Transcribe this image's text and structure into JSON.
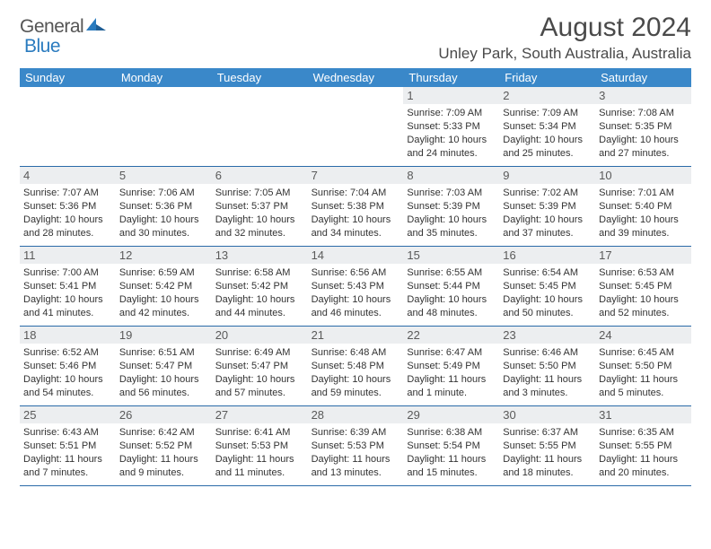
{
  "logo": {
    "word1": "General",
    "word2": "Blue"
  },
  "title": "August 2024",
  "location": "Unley Park, South Australia, Australia",
  "colors": {
    "header_bg": "#3a88c9",
    "header_text": "#ffffff",
    "daynum_bg": "#eceef0",
    "rule": "#2a6aa8",
    "logo_blue": "#2a7bbf"
  },
  "day_names": [
    "Sunday",
    "Monday",
    "Tuesday",
    "Wednesday",
    "Thursday",
    "Friday",
    "Saturday"
  ],
  "weeks": [
    [
      null,
      null,
      null,
      null,
      {
        "n": "1",
        "sr": "Sunrise: 7:09 AM",
        "ss": "Sunset: 5:33 PM",
        "dl": "Daylight: 10 hours and 24 minutes."
      },
      {
        "n": "2",
        "sr": "Sunrise: 7:09 AM",
        "ss": "Sunset: 5:34 PM",
        "dl": "Daylight: 10 hours and 25 minutes."
      },
      {
        "n": "3",
        "sr": "Sunrise: 7:08 AM",
        "ss": "Sunset: 5:35 PM",
        "dl": "Daylight: 10 hours and 27 minutes."
      }
    ],
    [
      {
        "n": "4",
        "sr": "Sunrise: 7:07 AM",
        "ss": "Sunset: 5:36 PM",
        "dl": "Daylight: 10 hours and 28 minutes."
      },
      {
        "n": "5",
        "sr": "Sunrise: 7:06 AM",
        "ss": "Sunset: 5:36 PM",
        "dl": "Daylight: 10 hours and 30 minutes."
      },
      {
        "n": "6",
        "sr": "Sunrise: 7:05 AM",
        "ss": "Sunset: 5:37 PM",
        "dl": "Daylight: 10 hours and 32 minutes."
      },
      {
        "n": "7",
        "sr": "Sunrise: 7:04 AM",
        "ss": "Sunset: 5:38 PM",
        "dl": "Daylight: 10 hours and 34 minutes."
      },
      {
        "n": "8",
        "sr": "Sunrise: 7:03 AM",
        "ss": "Sunset: 5:39 PM",
        "dl": "Daylight: 10 hours and 35 minutes."
      },
      {
        "n": "9",
        "sr": "Sunrise: 7:02 AM",
        "ss": "Sunset: 5:39 PM",
        "dl": "Daylight: 10 hours and 37 minutes."
      },
      {
        "n": "10",
        "sr": "Sunrise: 7:01 AM",
        "ss": "Sunset: 5:40 PM",
        "dl": "Daylight: 10 hours and 39 minutes."
      }
    ],
    [
      {
        "n": "11",
        "sr": "Sunrise: 7:00 AM",
        "ss": "Sunset: 5:41 PM",
        "dl": "Daylight: 10 hours and 41 minutes."
      },
      {
        "n": "12",
        "sr": "Sunrise: 6:59 AM",
        "ss": "Sunset: 5:42 PM",
        "dl": "Daylight: 10 hours and 42 minutes."
      },
      {
        "n": "13",
        "sr": "Sunrise: 6:58 AM",
        "ss": "Sunset: 5:42 PM",
        "dl": "Daylight: 10 hours and 44 minutes."
      },
      {
        "n": "14",
        "sr": "Sunrise: 6:56 AM",
        "ss": "Sunset: 5:43 PM",
        "dl": "Daylight: 10 hours and 46 minutes."
      },
      {
        "n": "15",
        "sr": "Sunrise: 6:55 AM",
        "ss": "Sunset: 5:44 PM",
        "dl": "Daylight: 10 hours and 48 minutes."
      },
      {
        "n": "16",
        "sr": "Sunrise: 6:54 AM",
        "ss": "Sunset: 5:45 PM",
        "dl": "Daylight: 10 hours and 50 minutes."
      },
      {
        "n": "17",
        "sr": "Sunrise: 6:53 AM",
        "ss": "Sunset: 5:45 PM",
        "dl": "Daylight: 10 hours and 52 minutes."
      }
    ],
    [
      {
        "n": "18",
        "sr": "Sunrise: 6:52 AM",
        "ss": "Sunset: 5:46 PM",
        "dl": "Daylight: 10 hours and 54 minutes."
      },
      {
        "n": "19",
        "sr": "Sunrise: 6:51 AM",
        "ss": "Sunset: 5:47 PM",
        "dl": "Daylight: 10 hours and 56 minutes."
      },
      {
        "n": "20",
        "sr": "Sunrise: 6:49 AM",
        "ss": "Sunset: 5:47 PM",
        "dl": "Daylight: 10 hours and 57 minutes."
      },
      {
        "n": "21",
        "sr": "Sunrise: 6:48 AM",
        "ss": "Sunset: 5:48 PM",
        "dl": "Daylight: 10 hours and 59 minutes."
      },
      {
        "n": "22",
        "sr": "Sunrise: 6:47 AM",
        "ss": "Sunset: 5:49 PM",
        "dl": "Daylight: 11 hours and 1 minute."
      },
      {
        "n": "23",
        "sr": "Sunrise: 6:46 AM",
        "ss": "Sunset: 5:50 PM",
        "dl": "Daylight: 11 hours and 3 minutes."
      },
      {
        "n": "24",
        "sr": "Sunrise: 6:45 AM",
        "ss": "Sunset: 5:50 PM",
        "dl": "Daylight: 11 hours and 5 minutes."
      }
    ],
    [
      {
        "n": "25",
        "sr": "Sunrise: 6:43 AM",
        "ss": "Sunset: 5:51 PM",
        "dl": "Daylight: 11 hours and 7 minutes."
      },
      {
        "n": "26",
        "sr": "Sunrise: 6:42 AM",
        "ss": "Sunset: 5:52 PM",
        "dl": "Daylight: 11 hours and 9 minutes."
      },
      {
        "n": "27",
        "sr": "Sunrise: 6:41 AM",
        "ss": "Sunset: 5:53 PM",
        "dl": "Daylight: 11 hours and 11 minutes."
      },
      {
        "n": "28",
        "sr": "Sunrise: 6:39 AM",
        "ss": "Sunset: 5:53 PM",
        "dl": "Daylight: 11 hours and 13 minutes."
      },
      {
        "n": "29",
        "sr": "Sunrise: 6:38 AM",
        "ss": "Sunset: 5:54 PM",
        "dl": "Daylight: 11 hours and 15 minutes."
      },
      {
        "n": "30",
        "sr": "Sunrise: 6:37 AM",
        "ss": "Sunset: 5:55 PM",
        "dl": "Daylight: 11 hours and 18 minutes."
      },
      {
        "n": "31",
        "sr": "Sunrise: 6:35 AM",
        "ss": "Sunset: 5:55 PM",
        "dl": "Daylight: 11 hours and 20 minutes."
      }
    ]
  ]
}
